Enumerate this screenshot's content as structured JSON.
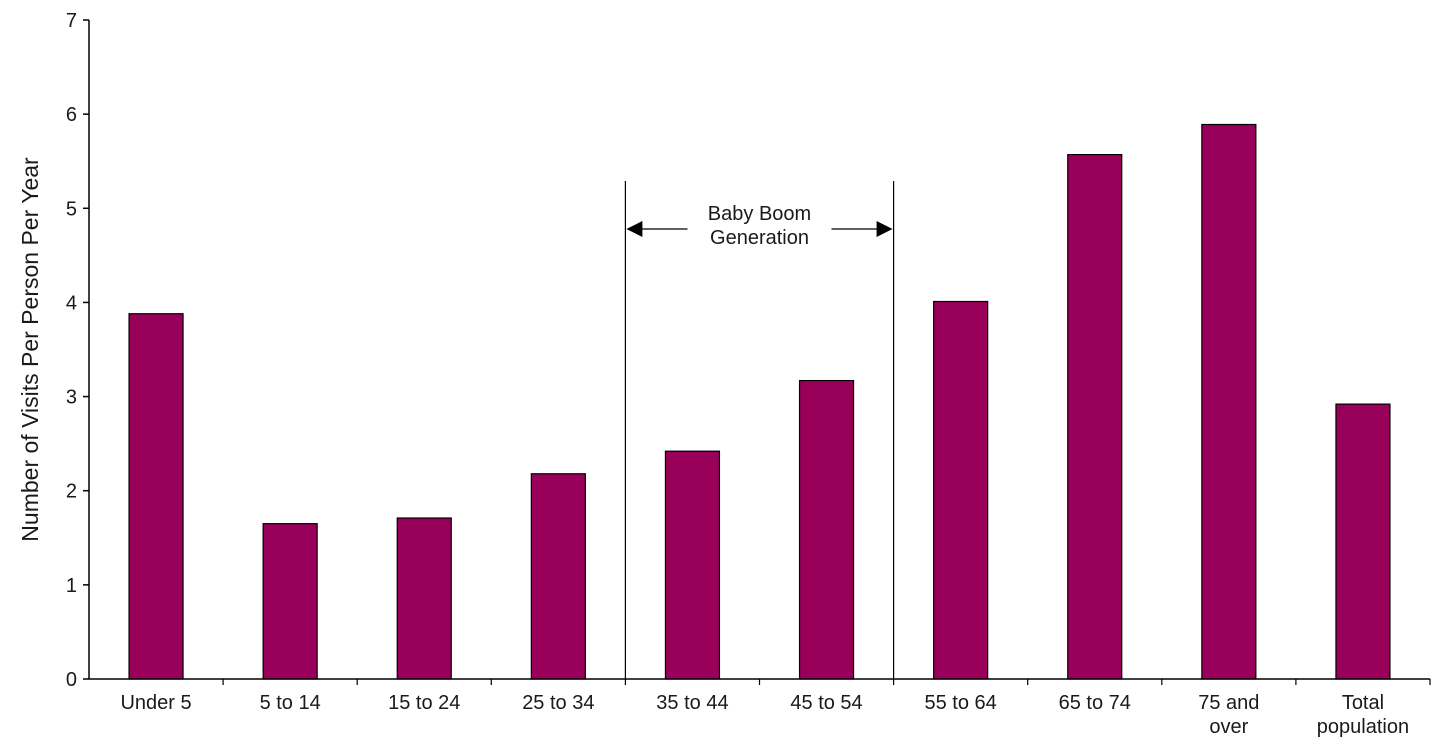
{
  "chart_data": {
    "type": "bar",
    "title": "",
    "xlabel": "",
    "ylabel": "Number of Visits Per Person Per Year",
    "ylim": [
      0,
      7
    ],
    "yticks": [
      "0",
      "1",
      "2",
      "3",
      "4",
      "5",
      "6",
      "7"
    ],
    "grid": false,
    "bar_color": "#990059",
    "categories": [
      [
        "Under 5"
      ],
      [
        "5 to 14"
      ],
      [
        "15 to 24"
      ],
      [
        "25 to 34"
      ],
      [
        "35 to 44"
      ],
      [
        "45 to 54"
      ],
      [
        "55 to 64"
      ],
      [
        "65 to 74"
      ],
      [
        "75 and",
        "over"
      ],
      [
        "Total",
        "population"
      ]
    ],
    "values": [
      3.88,
      1.65,
      1.71,
      2.18,
      2.42,
      3.17,
      4.01,
      5.57,
      5.89,
      2.92
    ],
    "annotation": {
      "lines": [
        "Baby Boom",
        "Generation"
      ],
      "span_categories": [
        "35 to 44",
        "45 to 54"
      ]
    }
  }
}
